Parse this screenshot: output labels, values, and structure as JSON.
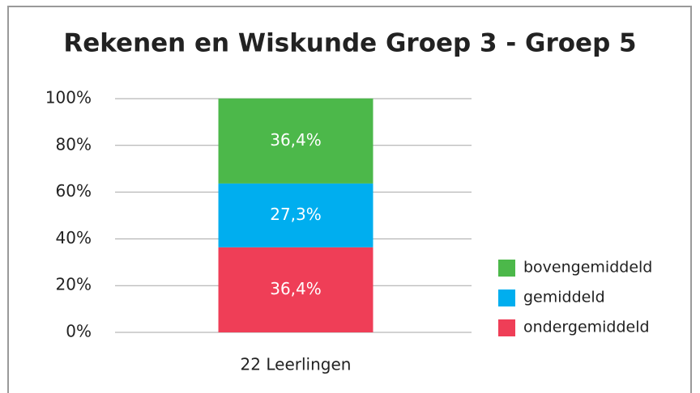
{
  "chart_data": {
    "type": "stacked_bar",
    "title": "Rekenen en Wiskunde Groep 3 - Groep 5",
    "categories": [
      "22 Leerlingen"
    ],
    "series": [
      {
        "name": "ondergemiddeld",
        "color": "#ef3e57",
        "values": [
          36.4
        ],
        "value_labels": [
          "36,4%"
        ]
      },
      {
        "name": "gemiddeld",
        "color": "#00aeef",
        "values": [
          27.3
        ],
        "value_labels": [
          "27,3%"
        ]
      },
      {
        "name": "bovengemiddeld",
        "color": "#4cb84a",
        "values": [
          36.4
        ],
        "value_labels": [
          "36,4%"
        ]
      }
    ],
    "ylim": [
      0,
      100
    ],
    "yticks": [
      {
        "value": 0,
        "label": "0%"
      },
      {
        "value": 20,
        "label": "20%"
      },
      {
        "value": 40,
        "label": "40%"
      },
      {
        "value": 60,
        "label": "60%"
      },
      {
        "value": 80,
        "label": "80%"
      },
      {
        "value": 100,
        "label": "100%"
      }
    ],
    "grid": true,
    "legend": "right"
  }
}
